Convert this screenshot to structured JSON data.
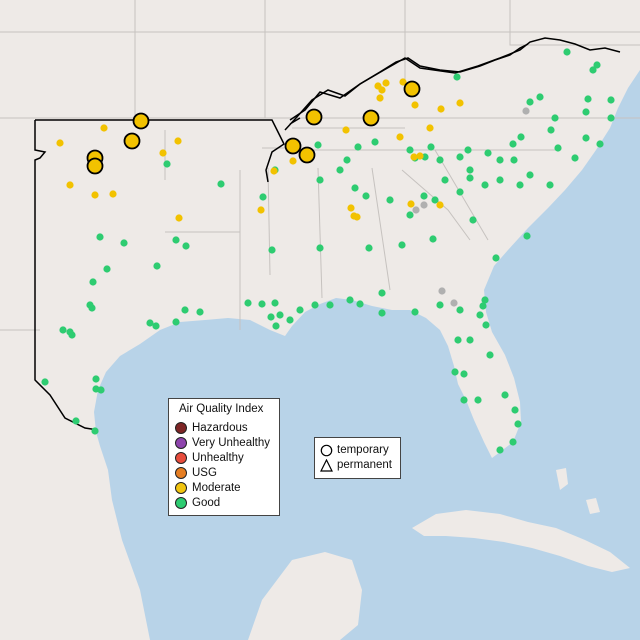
{
  "map": {
    "land_color": "#eeeae7",
    "water_color": "#b8d3e8",
    "colors": {
      "good": "#2ecc71",
      "moderate": "#f2c200",
      "no_data": "#b0b0b0",
      "outline": "#000000"
    }
  },
  "aqi_legend": {
    "title": "Air Quality Index",
    "items": [
      {
        "label": "Hazardous",
        "color": "#7e2626"
      },
      {
        "label": "Very Unhealthy",
        "color": "#8e44ad"
      },
      {
        "label": "Unhealthy",
        "color": "#e74c3c"
      },
      {
        "label": "USG",
        "color": "#e67e22"
      },
      {
        "label": "Moderate",
        "color": "#f1c40f"
      },
      {
        "label": "Good",
        "color": "#2ecc71"
      }
    ]
  },
  "type_legend": {
    "items": [
      {
        "label": "temporary",
        "shape": "circle-icon"
      },
      {
        "label": "permanent",
        "shape": "triangle-icon"
      }
    ]
  }
}
